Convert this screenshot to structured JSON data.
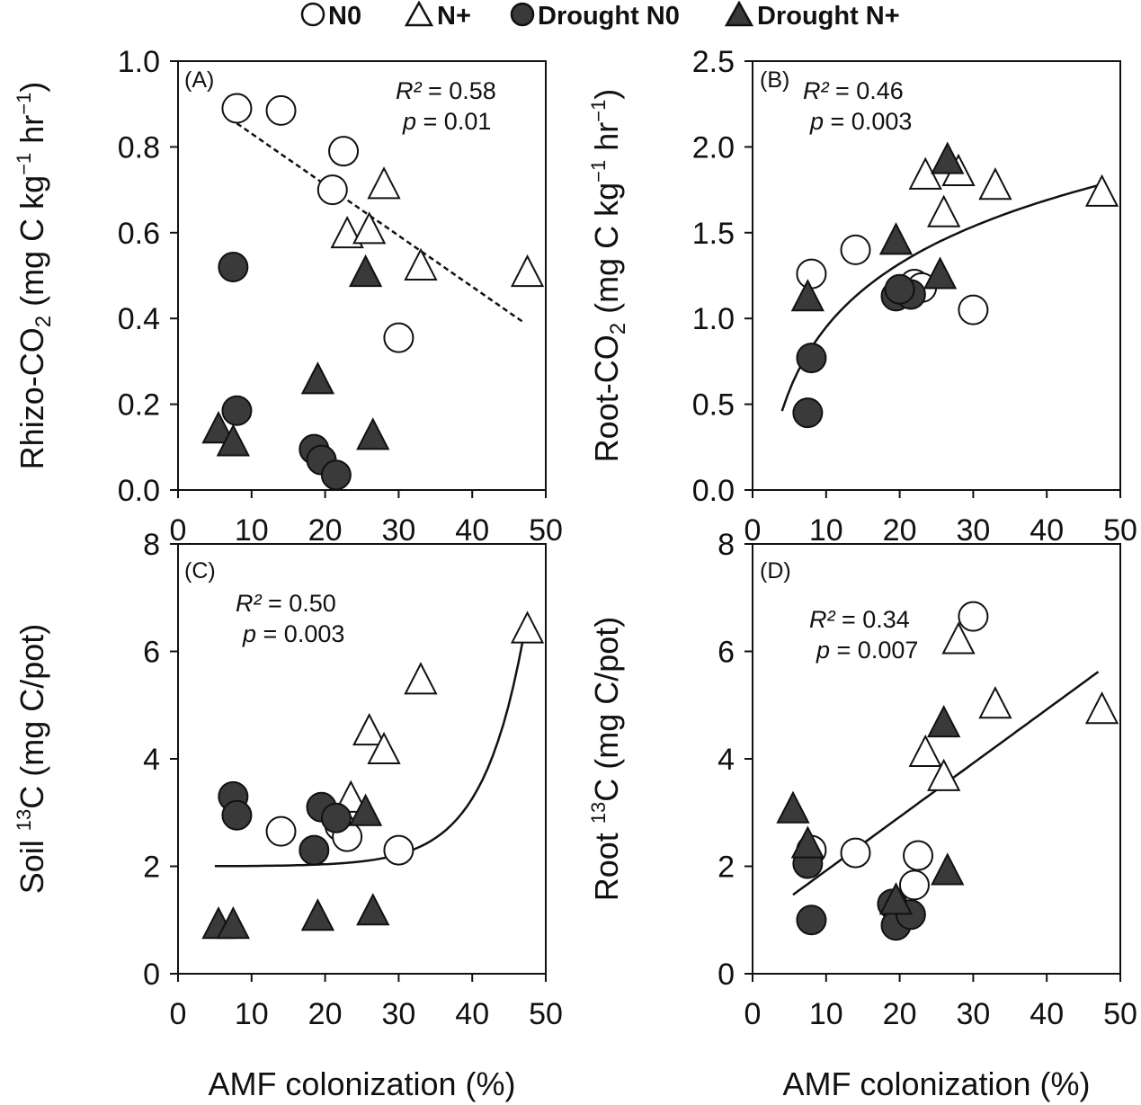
{
  "legend": {
    "items": [
      {
        "label": "N0",
        "marker": "circle",
        "filled": false
      },
      {
        "label": "N+",
        "marker": "triangle",
        "filled": false
      },
      {
        "label": "Drought N0",
        "marker": "circle",
        "filled": true
      },
      {
        "label": "Drought N+",
        "marker": "triangle",
        "filled": true
      }
    ]
  },
  "colors": {
    "fill_dark": "#3a3a3a",
    "fill_open": "#ffffff",
    "stroke": "#111111"
  },
  "chart_data": [
    {
      "type": "scatter",
      "panel": "(A)",
      "ylabel_main": "Rhizo-CO",
      "ylabel_sub": "2",
      "ylabel_tail": " (mg C kg",
      "ylabel_sup1": "−1",
      "ylabel_mid": " hr",
      "ylabel_sup2": "−1",
      "ylabel_end": ")",
      "xlabel": "",
      "xlim": [
        0,
        50
      ],
      "ylim": [
        0,
        1.0
      ],
      "xticks": [
        "0",
        "10",
        "20",
        "30",
        "40",
        "50"
      ],
      "yticks": [
        "0.0",
        "0.2",
        "0.4",
        "0.6",
        "0.8",
        "1.0"
      ],
      "yticks_values": [
        0,
        0.2,
        0.4,
        0.6,
        0.8,
        1.0
      ],
      "stats": {
        "r2_label": "R²",
        "r2": " = 0.58",
        "p_label": "p",
        "p": " = 0.01"
      },
      "fit": {
        "kind": "linear",
        "style": "dashed",
        "x_range": [
          8,
          47
        ],
        "coef": [
          0.95,
          -0.0119
        ]
      },
      "series": [
        {
          "name": "N0",
          "points": [
            [
              8,
              0.89
            ],
            [
              14,
              0.885
            ],
            [
              22.5,
              0.79
            ],
            [
              21,
              0.7
            ],
            [
              30,
              0.355
            ]
          ]
        },
        {
          "name": "N+",
          "points": [
            [
              28,
              0.71
            ],
            [
              23,
              0.595
            ],
            [
              26,
              0.605
            ],
            [
              33,
              0.52
            ],
            [
              47.5,
              0.505
            ]
          ]
        },
        {
          "name": "Drought N0",
          "points": [
            [
              7.5,
              0.52
            ],
            [
              8,
              0.185
            ],
            [
              18.5,
              0.095
            ],
            [
              19.5,
              0.07
            ],
            [
              21.5,
              0.035
            ]
          ]
        },
        {
          "name": "Drought N+",
          "points": [
            [
              25.5,
              0.505
            ],
            [
              19,
              0.255
            ],
            [
              5.5,
              0.14
            ],
            [
              7.5,
              0.11
            ],
            [
              26.5,
              0.125
            ]
          ]
        }
      ]
    },
    {
      "type": "scatter",
      "panel": "(B)",
      "ylabel_main": "Root-CO",
      "ylabel_sub": "2",
      "ylabel_tail": " (mg C kg",
      "ylabel_sup1": "−1",
      "ylabel_mid": " hr",
      "ylabel_sup2": "−1",
      "ylabel_end": ")",
      "xlabel": "",
      "xlim": [
        0,
        50
      ],
      "ylim": [
        0,
        2.5
      ],
      "xticks": [
        "0",
        "10",
        "20",
        "30",
        "40",
        "50"
      ],
      "yticks": [
        "0.0",
        "0.5",
        "1.0",
        "1.5",
        "2.0",
        "2.5"
      ],
      "yticks_values": [
        0,
        0.5,
        1.0,
        1.5,
        2.0,
        2.5
      ],
      "stats": {
        "r2_label": "R²",
        "r2": " = 0.46",
        "p_label": "p",
        "p": " = 0.003"
      },
      "fit": {
        "kind": "log",
        "style": "solid",
        "x_range": [
          4,
          47
        ],
        "coef": [
          -0.28,
          0.534
        ]
      },
      "series": [
        {
          "name": "N0",
          "points": [
            [
              8,
              1.26
            ],
            [
              14,
              1.4
            ],
            [
              22,
              1.2
            ],
            [
              23,
              1.18
            ],
            [
              30,
              1.05
            ]
          ]
        },
        {
          "name": "N+",
          "points": [
            [
              23.5,
              1.83
            ],
            [
              28,
              1.85
            ],
            [
              26,
              1.61
            ],
            [
              33,
              1.77
            ],
            [
              47.5,
              1.73
            ]
          ]
        },
        {
          "name": "Drought N0",
          "points": [
            [
              8,
              0.77
            ],
            [
              7.5,
              0.45
            ],
            [
              19.5,
              1.13
            ],
            [
              21.5,
              1.14
            ],
            [
              20,
              1.17
            ]
          ]
        },
        {
          "name": "Drought N+",
          "points": [
            [
              7.5,
              1.12
            ],
            [
              19.5,
              1.45
            ],
            [
              26.5,
              1.92
            ],
            [
              25.5,
              1.25
            ]
          ]
        }
      ]
    },
    {
      "type": "scatter",
      "panel": "(C)",
      "ylabel_main": "Soil ",
      "ylabel_sup1": "13",
      "ylabel_tail": "C (mg C/pot)",
      "xlabel": "AMF colonization (%)",
      "xlim": [
        0,
        50
      ],
      "ylim": [
        0,
        8
      ],
      "xticks": [
        "0",
        "10",
        "20",
        "30",
        "40",
        "50"
      ],
      "yticks": [
        "0",
        "2",
        "4",
        "6",
        "8"
      ],
      "yticks_values": [
        0,
        2,
        4,
        6,
        8
      ],
      "stats": {
        "r2_label": "R²",
        "r2": " = 0.50",
        "p_label": "p",
        "p": " = 0.003"
      },
      "fit": {
        "kind": "exp",
        "style": "solid",
        "x_range": [
          5,
          47
        ],
        "coef": [
          2.0,
          0.00115,
          0.175
        ]
      },
      "series": [
        {
          "name": "N0",
          "points": [
            [
              14,
              2.65
            ],
            [
              22,
              2.75
            ],
            [
              23,
              2.55
            ],
            [
              30,
              2.3
            ]
          ]
        },
        {
          "name": "N+",
          "points": [
            [
              23.5,
              3.25
            ],
            [
              26,
              4.5
            ],
            [
              28,
              4.15
            ],
            [
              33,
              5.45
            ],
            [
              47.5,
              6.4
            ]
          ]
        },
        {
          "name": "Drought N0",
          "points": [
            [
              7.5,
              3.3
            ],
            [
              8,
              2.95
            ],
            [
              18.5,
              2.3
            ],
            [
              19.5,
              3.1
            ],
            [
              21.5,
              2.9
            ]
          ]
        },
        {
          "name": "Drought N+",
          "points": [
            [
              25.5,
              3.0
            ],
            [
              5.5,
              0.9
            ],
            [
              7.5,
              0.9
            ],
            [
              19,
              1.05
            ],
            [
              26.5,
              1.15
            ]
          ]
        }
      ]
    },
    {
      "type": "scatter",
      "panel": "(D)",
      "ylabel_main": "Root ",
      "ylabel_sup1": "13",
      "ylabel_tail": "C (mg C/pot)",
      "xlabel": "AMF colonization (%)",
      "xlim": [
        0,
        50
      ],
      "ylim": [
        0,
        8
      ],
      "xticks": [
        "0",
        "10",
        "20",
        "30",
        "40",
        "50"
      ],
      "yticks": [
        "0",
        "2",
        "4",
        "6",
        "8"
      ],
      "yticks_values": [
        0,
        2,
        4,
        6,
        8
      ],
      "stats": {
        "r2_label": "R²",
        "r2": " = 0.34",
        "p_label": "p",
        "p": " = 0.007"
      },
      "fit": {
        "kind": "linear",
        "style": "solid",
        "x_range": [
          5.5,
          47
        ],
        "coef": [
          0.92,
          0.1
        ]
      },
      "series": [
        {
          "name": "N0",
          "points": [
            [
              8,
              2.3
            ],
            [
              14,
              2.25
            ],
            [
              22.5,
              2.2
            ],
            [
              22,
              1.65
            ],
            [
              30,
              6.65
            ]
          ]
        },
        {
          "name": "N+",
          "points": [
            [
              28,
              6.2
            ],
            [
              23.5,
              4.1
            ],
            [
              26,
              3.65
            ],
            [
              33,
              5.0
            ],
            [
              47.5,
              4.9
            ]
          ]
        },
        {
          "name": "Drought N0",
          "points": [
            [
              7.5,
              2.05
            ],
            [
              8,
              1.0
            ],
            [
              19,
              1.3
            ],
            [
              19.5,
              0.9
            ],
            [
              21.5,
              1.1
            ]
          ]
        },
        {
          "name": "Drought N+",
          "points": [
            [
              5.5,
              3.05
            ],
            [
              7.5,
              2.4
            ],
            [
              19.5,
              1.35
            ],
            [
              26,
              4.65
            ],
            [
              26.5,
              1.9
            ]
          ]
        }
      ]
    }
  ]
}
